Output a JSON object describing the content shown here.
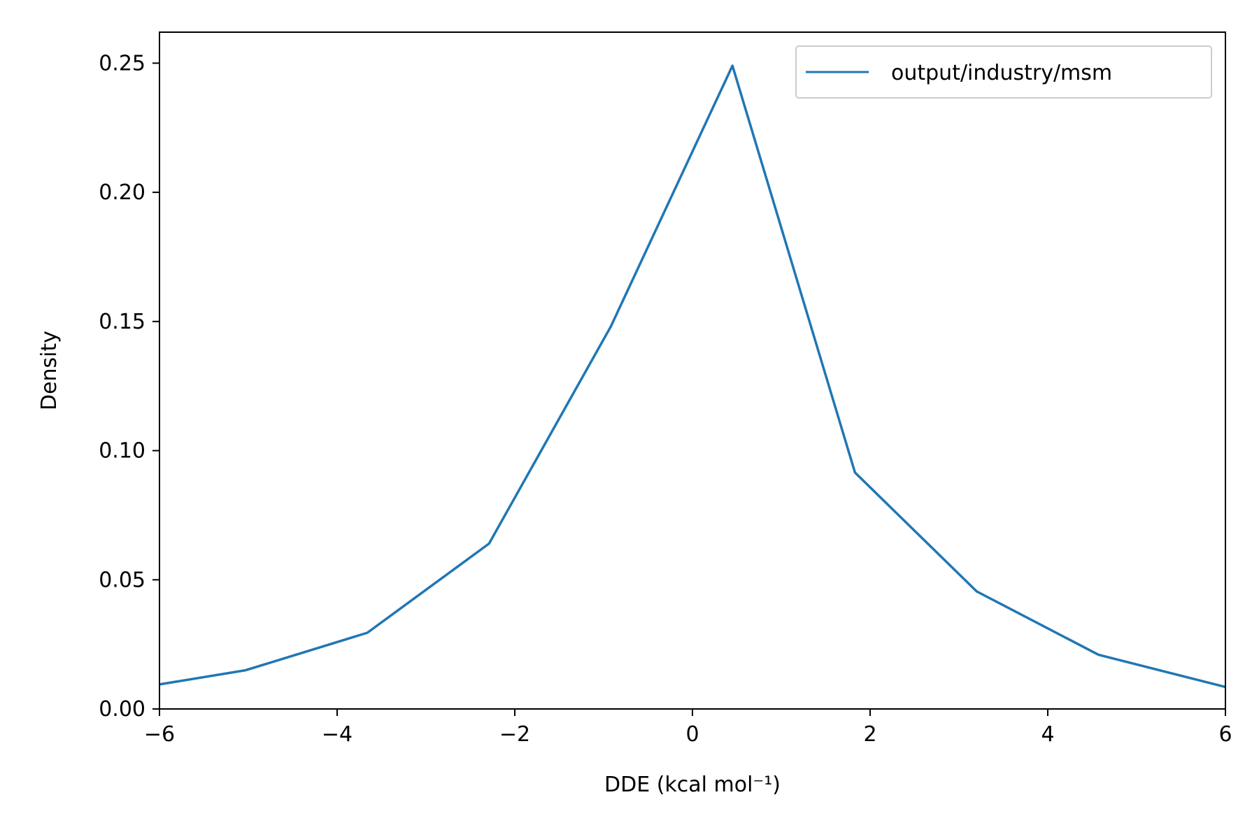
{
  "chart_data": {
    "type": "line",
    "xlabel": "DDE (kcal mol⁻¹)",
    "ylabel": "Density",
    "xlim": [
      -6,
      6
    ],
    "ylim": [
      0,
      0.262
    ],
    "x_ticks": [
      -6,
      -4,
      -2,
      0,
      2,
      4,
      6
    ],
    "x_tick_labels": [
      "−6",
      "−4",
      "−2",
      "0",
      "2",
      "4",
      "6"
    ],
    "y_ticks": [
      0,
      0.05,
      0.1,
      0.15,
      0.2,
      0.25
    ],
    "y_tick_labels": [
      "0.00",
      "0.05",
      "0.10",
      "0.15",
      "0.20",
      "0.25"
    ],
    "grid": false,
    "legend_position": "top-right",
    "series": [
      {
        "name": "output/industry/msm",
        "color": "#1f77b4",
        "x": [
          -6.0,
          -5.03,
          -3.66,
          -2.29,
          -0.92,
          0.45,
          1.83,
          3.2,
          4.57,
          6.0
        ],
        "y": [
          0.0095,
          0.015,
          0.0295,
          0.064,
          0.148,
          0.249,
          0.0915,
          0.0455,
          0.021,
          0.0085
        ]
      }
    ]
  }
}
